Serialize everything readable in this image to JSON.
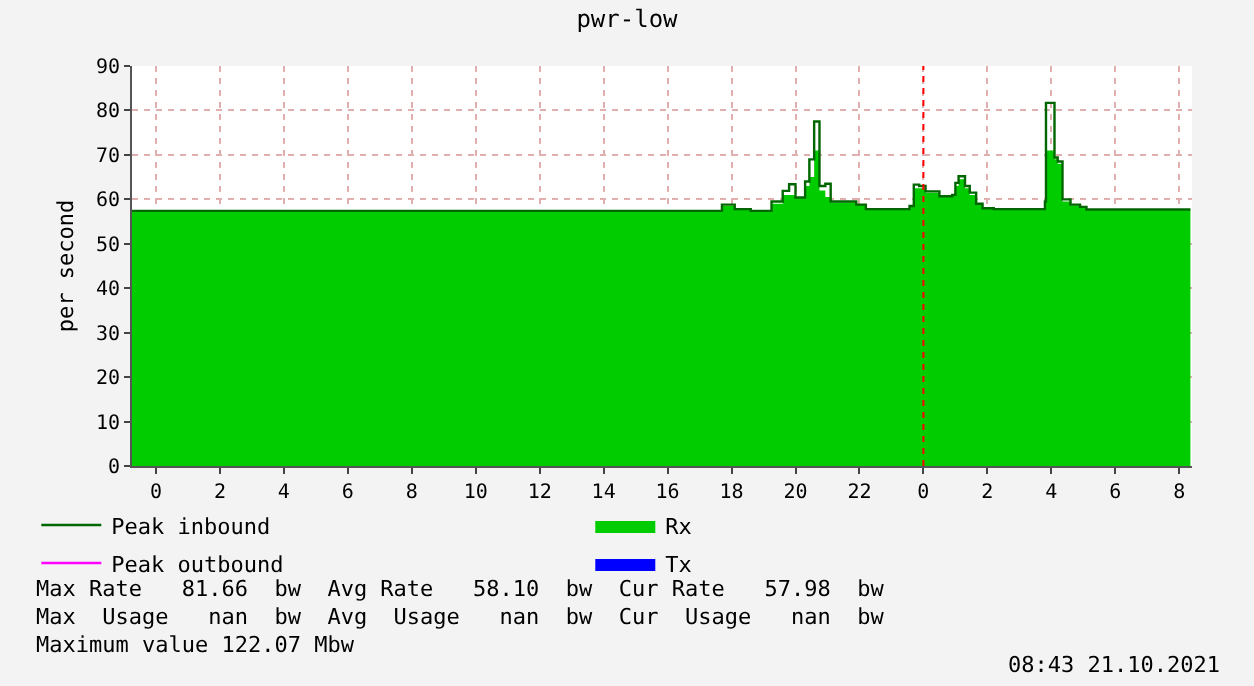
{
  "chart_data": {
    "type": "area",
    "title": "pwr-low",
    "ylabel": "per second",
    "x": [
      "2021-10-19T23:15",
      "2021-10-20T02:00",
      "2021-10-20T05:00",
      "2021-10-20T08:00",
      "2021-10-20T11:00",
      "2021-10-20T14:00",
      "2021-10-20T15:45",
      "2021-10-20T17:42",
      "2021-10-20T18:06",
      "2021-10-20T18:36",
      "2021-10-20T19:15",
      "2021-10-20T19:36",
      "2021-10-20T19:48",
      "2021-10-20T20:00",
      "2021-10-20T20:18",
      "2021-10-20T20:26",
      "2021-10-20T20:35",
      "2021-10-20T20:45",
      "2021-10-20T20:56",
      "2021-10-20T21:06",
      "2021-10-20T21:54",
      "2021-10-20T22:12",
      "2021-10-20T23:24",
      "2021-10-20T23:34",
      "2021-10-20T23:42",
      "2021-10-20T23:52",
      "2021-10-21T00:04",
      "2021-10-21T00:16",
      "2021-10-21T00:30",
      "2021-10-21T00:54",
      "2021-10-21T01:00",
      "2021-10-21T01:06",
      "2021-10-21T01:18",
      "2021-10-21T01:27",
      "2021-10-21T01:39",
      "2021-10-21T01:51",
      "2021-10-21T02:12",
      "2021-10-21T03:42",
      "2021-10-21T03:48",
      "2021-10-21T03:50",
      "2021-10-21T04:06",
      "2021-10-21T04:12",
      "2021-10-21T04:21",
      "2021-10-21T04:36",
      "2021-10-21T04:54",
      "2021-10-21T05:06",
      "2021-10-21T08:21"
    ],
    "series": [
      {
        "name": "Rx",
        "type": "area",
        "color": "#00cc00",
        "values": [
          57.4,
          57.4,
          57.4,
          57.4,
          57.4,
          57.4,
          57.4,
          58.5,
          57.8,
          57.4,
          59,
          61,
          61,
          60.4,
          63,
          65,
          71,
          62,
          60.5,
          59.3,
          58.8,
          57.8,
          57.8,
          58.3,
          62.5,
          62.5,
          61.5,
          61.5,
          60.5,
          60.8,
          63,
          64.5,
          62.5,
          61,
          59,
          58,
          57.8,
          57.8,
          59.5,
          71,
          69,
          68,
          59.5,
          58.6,
          58.2,
          57.7,
          57.7
        ]
      },
      {
        "name": "Peak inbound",
        "type": "step",
        "color": "#006600",
        "values": [
          57.4,
          57.4,
          57.4,
          57.4,
          57.4,
          57.4,
          57.4,
          58.8,
          57.8,
          57.4,
          59.5,
          61.9,
          63.4,
          60.4,
          64,
          69,
          77.5,
          63,
          63.5,
          59.5,
          58.8,
          57.8,
          57.8,
          58.5,
          63.3,
          63,
          61.8,
          61.8,
          60.7,
          61,
          63.7,
          65.2,
          63,
          61.5,
          59,
          58,
          57.8,
          57.8,
          59.5,
          81.7,
          69.4,
          68.5,
          60,
          58.8,
          58.3,
          57.7,
          57.7
        ]
      },
      {
        "name": "Peak outbound",
        "type": "step",
        "color": "#ff00ff",
        "values": [
          null,
          null,
          null,
          null,
          null,
          null,
          null,
          null,
          null,
          null,
          null,
          null,
          null,
          null,
          null,
          null,
          null,
          null,
          null,
          null,
          null,
          null,
          null,
          null,
          null,
          null,
          null,
          null,
          null,
          null,
          null,
          null,
          null,
          null,
          null,
          null,
          null,
          null,
          null,
          null,
          null,
          null,
          null,
          null,
          null,
          null,
          null
        ]
      },
      {
        "name": "Tx",
        "type": "area",
        "color": "#0000ff",
        "values": [
          null,
          null,
          null,
          null,
          null,
          null,
          null,
          null,
          null,
          null,
          null,
          null,
          null,
          null,
          null,
          null,
          null,
          null,
          null,
          null,
          null,
          null,
          null,
          null,
          null,
          null,
          null,
          null,
          null,
          null,
          null,
          null,
          null,
          null,
          null,
          null,
          null,
          null,
          null,
          null,
          null,
          null,
          null,
          null,
          null,
          null,
          null
        ]
      }
    ],
    "xlim": [
      "2021-10-19T23:15",
      "2021-10-21T08:24"
    ],
    "xticks": [
      {
        "value": "2021-10-20T00:00",
        "label": "0"
      },
      {
        "value": "2021-10-20T02:00",
        "label": "2"
      },
      {
        "value": "2021-10-20T04:00",
        "label": "4"
      },
      {
        "value": "2021-10-20T06:00",
        "label": "6"
      },
      {
        "value": "2021-10-20T08:00",
        "label": "8"
      },
      {
        "value": "2021-10-20T10:00",
        "label": "10"
      },
      {
        "value": "2021-10-20T12:00",
        "label": "12"
      },
      {
        "value": "2021-10-20T14:00",
        "label": "14"
      },
      {
        "value": "2021-10-20T16:00",
        "label": "16"
      },
      {
        "value": "2021-10-20T18:00",
        "label": "18"
      },
      {
        "value": "2021-10-20T20:00",
        "label": "20"
      },
      {
        "value": "2021-10-20T22:00",
        "label": "22"
      },
      {
        "value": "2021-10-21T00:00",
        "label": "0"
      },
      {
        "value": "2021-10-21T02:00",
        "label": "2"
      },
      {
        "value": "2021-10-21T04:00",
        "label": "4"
      },
      {
        "value": "2021-10-21T06:00",
        "label": "6"
      },
      {
        "value": "2021-10-21T08:00",
        "label": "8"
      }
    ],
    "ylim": [
      0,
      90
    ],
    "yticks": [
      0,
      10,
      20,
      30,
      40,
      50,
      60,
      70,
      80,
      90
    ],
    "ref_lines": [
      {
        "axis": "x",
        "value": "2021-10-21T00:00",
        "color": "#ff0000",
        "line_style": "dotted"
      }
    ],
    "grid": true,
    "legend": "bottom",
    "annotations": [
      "Max Rate   81.66  bw  Avg Rate   58.10  bw  Cur Rate   57.98  bw",
      "Max  Usage   nan  bw  Avg  Usage   nan  bw  Cur  Usage   nan  bw",
      "Maximum value 122.07 Mbw",
      "08:43 21.10.2021"
    ]
  }
}
